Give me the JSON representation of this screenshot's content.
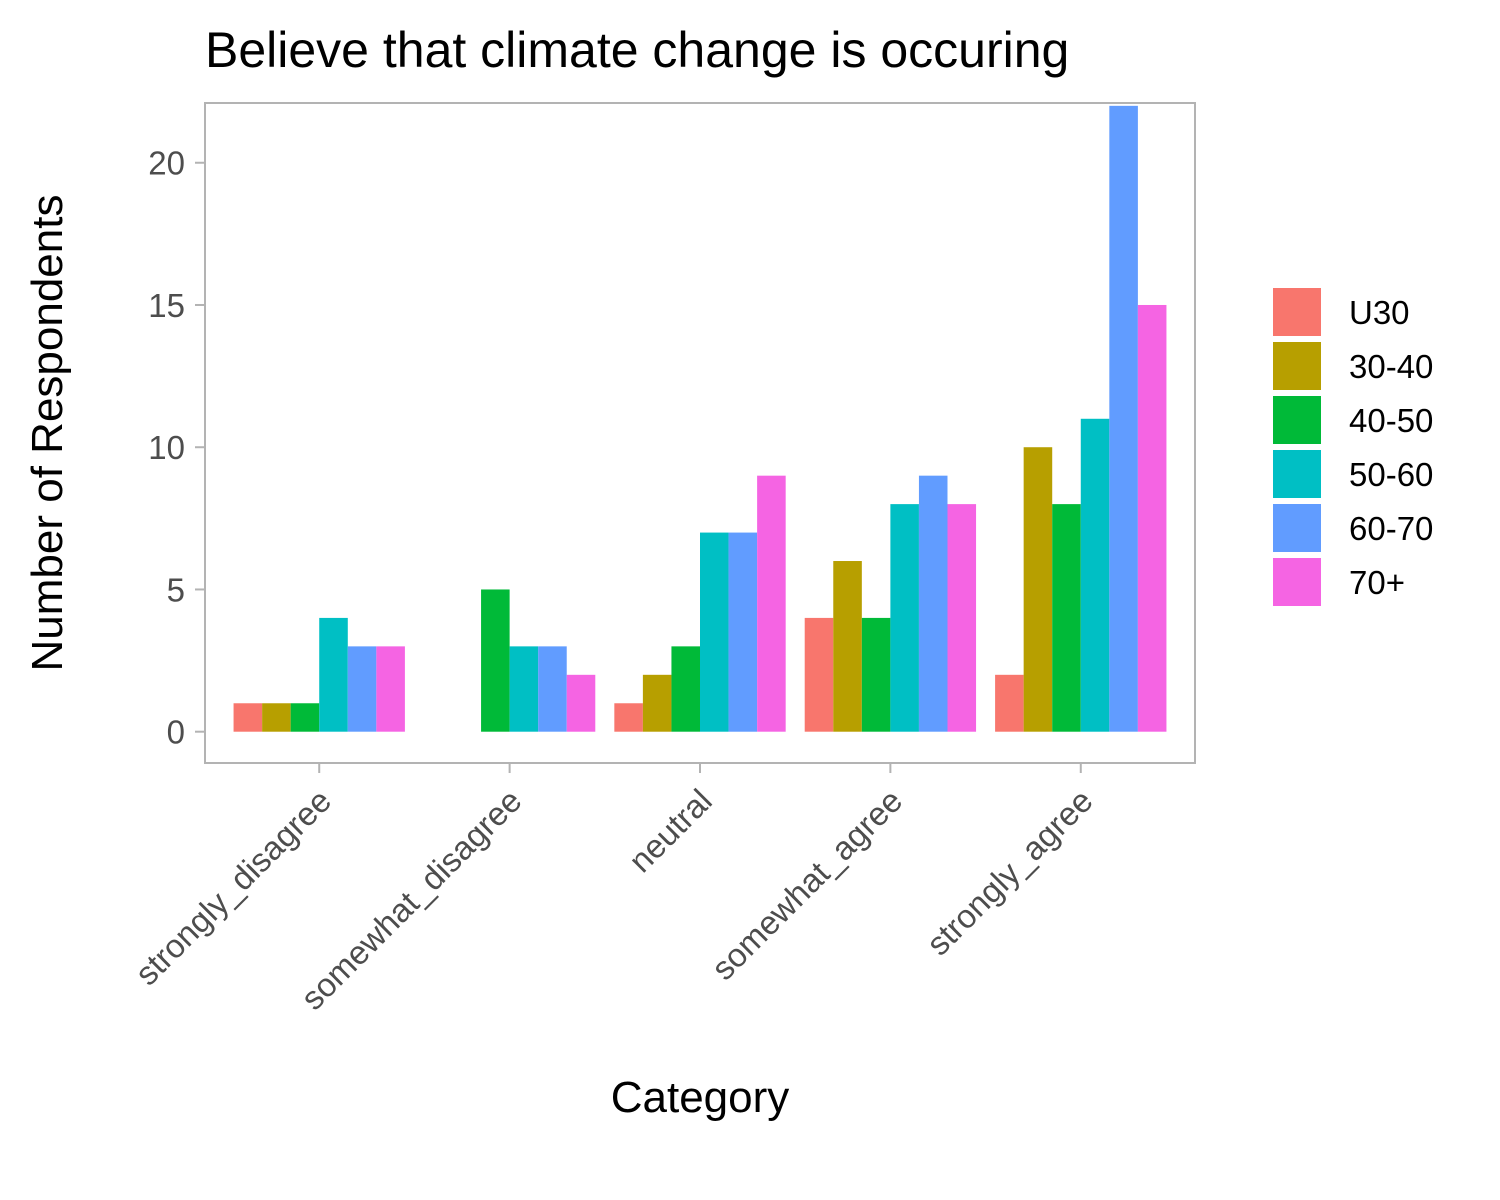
{
  "chart_data": {
    "type": "bar",
    "title": "Believe that climate change is occuring",
    "xlabel": "Category",
    "ylabel": "Number of Respondents",
    "categories": [
      "strongly_disagree",
      "somewhat_disagree",
      "neutral",
      "somewhat_agree",
      "strongly_agree"
    ],
    "series": [
      {
        "name": "U30",
        "color": "#F8766D",
        "values": [
          1,
          0,
          1,
          4,
          2
        ]
      },
      {
        "name": "30-40",
        "color": "#B79F00",
        "values": [
          1,
          0,
          2,
          6,
          10
        ]
      },
      {
        "name": "40-50",
        "color": "#00BA38",
        "values": [
          1,
          5,
          3,
          4,
          8
        ]
      },
      {
        "name": "50-60",
        "color": "#00BFC4",
        "values": [
          4,
          3,
          7,
          8,
          11
        ]
      },
      {
        "name": "60-70",
        "color": "#619CFF",
        "values": [
          3,
          3,
          7,
          9,
          22
        ]
      },
      {
        "name": "70+",
        "color": "#F564E3",
        "values": [
          3,
          2,
          9,
          8,
          15
        ]
      }
    ],
    "yticks": [
      0,
      5,
      10,
      15,
      20
    ],
    "ylim": [
      -1.1,
      22.1
    ],
    "grid": false,
    "legend_position": "right"
  }
}
